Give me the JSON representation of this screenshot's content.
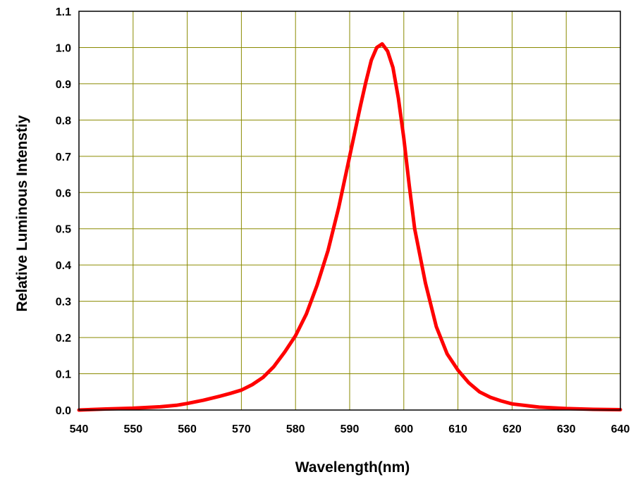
{
  "chart_data": {
    "type": "line",
    "title": "",
    "xlabel": "Wavelength(nm)",
    "ylabel": "Relative Luminous Intenstiy",
    "xlim": [
      540,
      640
    ],
    "ylim": [
      0,
      1.1
    ],
    "x_ticks": [
      540,
      550,
      560,
      570,
      580,
      590,
      600,
      610,
      620,
      630,
      640
    ],
    "x_tick_labels": [
      "540",
      "550",
      "560",
      "570",
      "580",
      "590",
      "600",
      "610",
      "620",
      "630",
      "640"
    ],
    "y_ticks": [
      0,
      0.1,
      0.2,
      0.3,
      0.4,
      0.5,
      0.6,
      0.7,
      0.8,
      0.9,
      1.0,
      1.1
    ],
    "y_tick_labels": [
      "0.0",
      "0.1",
      "0.2",
      "0.3",
      "0.4",
      "0.5",
      "0.6",
      "0.7",
      "0.8",
      "0.9",
      "1.0",
      "1.1"
    ],
    "grid": true,
    "legend": "none",
    "colors": {
      "line": "#ff0000",
      "grid": "#8a8a00",
      "frame": "#000000"
    },
    "series": [
      {
        "x": [
          540,
          545,
          550,
          555,
          558,
          560,
          563,
          566,
          568,
          570,
          572,
          574,
          576,
          578,
          580,
          582,
          584,
          586,
          588,
          590,
          592,
          593,
          594,
          595,
          596,
          597,
          598,
          599,
          600,
          601,
          602,
          604,
          606,
          608,
          610,
          612,
          614,
          616,
          618,
          620,
          625,
          630,
          635,
          640
        ],
        "y": [
          0.0,
          0.003,
          0.005,
          0.009,
          0.013,
          0.018,
          0.027,
          0.038,
          0.046,
          0.055,
          0.07,
          0.09,
          0.12,
          0.16,
          0.205,
          0.265,
          0.345,
          0.44,
          0.56,
          0.7,
          0.84,
          0.905,
          0.965,
          1.0,
          1.01,
          0.99,
          0.945,
          0.86,
          0.75,
          0.62,
          0.5,
          0.35,
          0.23,
          0.155,
          0.11,
          0.075,
          0.05,
          0.035,
          0.025,
          0.017,
          0.008,
          0.004,
          0.002,
          0.001
        ]
      }
    ]
  }
}
